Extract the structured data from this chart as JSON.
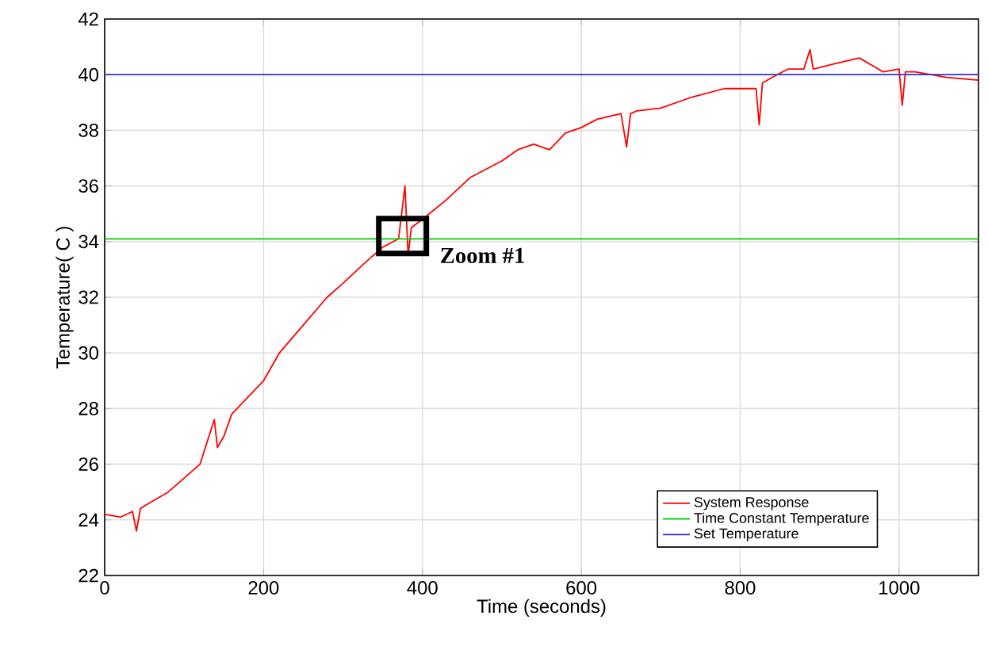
{
  "chart_data": {
    "type": "line",
    "xlabel": "Time (seconds)",
    "ylabel": "Temperature( C )",
    "xlim": [
      0,
      1100
    ],
    "ylim": [
      22,
      42
    ],
    "xticks": [
      0,
      200,
      400,
      600,
      800,
      1000
    ],
    "yticks": [
      22,
      24,
      26,
      28,
      30,
      32,
      34,
      36,
      38,
      40,
      42
    ],
    "grid": true,
    "legend": "bottom right",
    "marker": "none",
    "line_style": "solid",
    "annotations": [
      {
        "text": "Zoom #1",
        "x": 375,
        "y": 34.2
      }
    ],
    "series": [
      {
        "name": "System Response",
        "color": "#ff0000",
        "x": [
          0,
          20,
          35,
          40,
          45,
          50,
          80,
          100,
          120,
          138,
          142,
          150,
          160,
          200,
          220,
          250,
          280,
          300,
          330,
          350,
          370,
          378,
          382,
          386,
          400,
          430,
          460,
          500,
          520,
          540,
          560,
          580,
          600,
          620,
          650,
          657,
          662,
          670,
          700,
          740,
          780,
          820,
          824,
          828,
          840,
          860,
          880,
          888,
          892,
          920,
          950,
          980,
          1000,
          1004,
          1008,
          1020,
          1060,
          1100
        ],
        "values": [
          24.2,
          24.1,
          24.3,
          23.6,
          24.4,
          24.5,
          25.0,
          25.5,
          26.0,
          27.6,
          26.6,
          27.0,
          27.8,
          29.0,
          30.0,
          31.0,
          32.0,
          32.5,
          33.3,
          33.8,
          34.1,
          36.0,
          33.5,
          34.5,
          34.8,
          35.5,
          36.3,
          36.9,
          37.3,
          37.5,
          37.3,
          37.9,
          38.1,
          38.4,
          38.6,
          37.4,
          38.6,
          38.7,
          38.8,
          39.2,
          39.5,
          39.5,
          38.2,
          39.7,
          39.9,
          40.2,
          40.2,
          40.9,
          40.2,
          40.4,
          40.6,
          40.1,
          40.2,
          38.9,
          40.1,
          40.1,
          39.9,
          39.8
        ]
      },
      {
        "name": "Time Constant Temperature",
        "color": "#00cc00",
        "x": [
          0,
          1100
        ],
        "values": [
          34.1,
          34.1
        ]
      },
      {
        "name": "Set Temperature",
        "color": "#3333cc",
        "x": [
          0,
          1100
        ],
        "values": [
          40,
          40
        ]
      }
    ]
  }
}
